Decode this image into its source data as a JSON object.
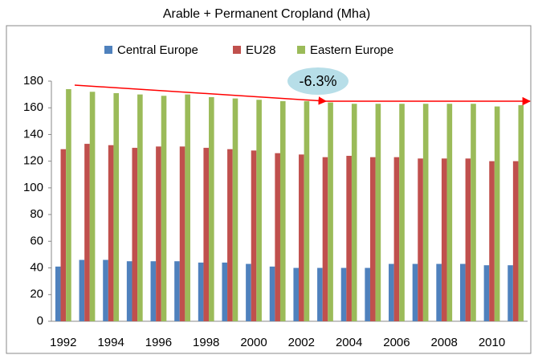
{
  "chart_data": {
    "type": "bar",
    "title": "Arable + Permanent Cropland (Mha)",
    "categories": [
      "1992",
      null,
      "1994",
      null,
      "1996",
      null,
      "1998",
      null,
      "2000",
      null,
      "2002",
      null,
      "2004",
      null,
      "2006",
      null,
      "2008",
      null,
      "2010",
      null
    ],
    "series": [
      {
        "name": "Central Europe",
        "color": "#4f81bd",
        "values": [
          41,
          46,
          46,
          45,
          45,
          45,
          44,
          44,
          43,
          41,
          40,
          40,
          40,
          40,
          43,
          43,
          43,
          43,
          42,
          42
        ]
      },
      {
        "name": "EU28",
        "color": "#c0504d",
        "values": [
          129,
          133,
          132,
          130,
          131,
          131,
          130,
          129,
          128,
          126,
          125,
          123,
          124,
          123,
          123,
          122,
          122,
          122,
          120,
          120
        ]
      },
      {
        "name": "Eastern Europe",
        "color": "#9bbb59",
        "values": [
          174,
          172,
          171,
          170,
          169,
          170,
          168,
          167,
          166,
          165,
          165,
          164,
          163,
          163,
          163,
          163,
          163,
          163,
          161,
          162
        ]
      }
    ],
    "annotation": "-6.3%",
    "ylim": [
      0,
      180
    ],
    "yticks": [
      0,
      20,
      40,
      60,
      80,
      100,
      120,
      140,
      160,
      180
    ],
    "grid": false,
    "legend": "top"
  }
}
